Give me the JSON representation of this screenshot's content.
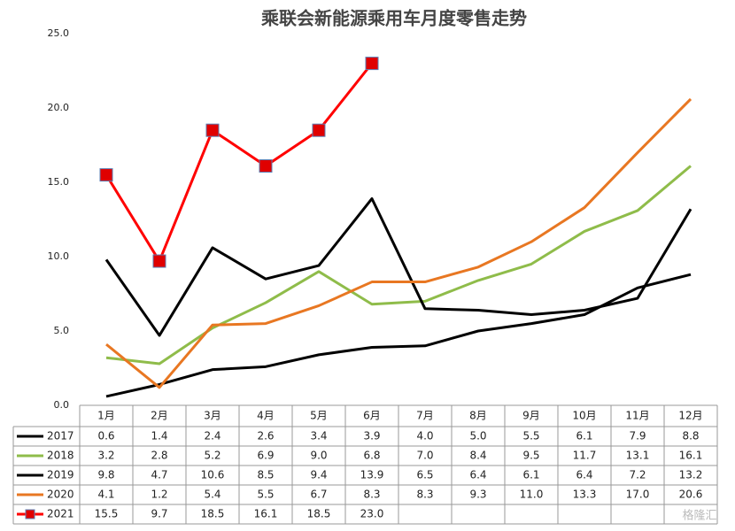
{
  "chart_data": {
    "type": "line",
    "title": "乘联会新能源乘用车月度零售走势",
    "categories": [
      "1月",
      "2月",
      "3月",
      "4月",
      "5月",
      "6月",
      "7月",
      "8月",
      "9月",
      "10月",
      "11月",
      "12月"
    ],
    "ylim": [
      0,
      25
    ],
    "yticks": [
      {
        "value": 0,
        "label": "0.0"
      },
      {
        "value": 5,
        "label": "5.0"
      },
      {
        "value": 10,
        "label": "10.0"
      },
      {
        "value": 15,
        "label": "15.0"
      },
      {
        "value": 20,
        "label": "20.0"
      },
      {
        "value": 25,
        "label": "25.0"
      }
    ],
    "series": [
      {
        "name": "2017",
        "color": "#000000",
        "values": [
          0.6,
          1.4,
          2.4,
          2.6,
          3.4,
          3.9,
          4.0,
          5.0,
          5.5,
          6.1,
          7.9,
          8.8
        ],
        "value_labels": [
          "0.6",
          "1.4",
          "2.4",
          "2.6",
          "3.4",
          "3.9",
          "4.0",
          "5.0",
          "5.5",
          "6.1",
          "7.9",
          "8.8"
        ]
      },
      {
        "name": "2018",
        "color": "#8fbc4a",
        "values": [
          3.2,
          2.8,
          5.2,
          6.9,
          9.0,
          6.8,
          7.0,
          8.4,
          9.5,
          11.7,
          13.1,
          16.1
        ],
        "value_labels": [
          "3.2",
          "2.8",
          "5.2",
          "6.9",
          "9.0",
          "6.8",
          "7.0",
          "8.4",
          "9.5",
          "11.7",
          "13.1",
          "16.1"
        ]
      },
      {
        "name": "2019",
        "color": "#000000",
        "values": [
          9.8,
          4.7,
          10.6,
          8.5,
          9.4,
          13.9,
          6.5,
          6.4,
          6.1,
          6.4,
          7.2,
          13.2
        ],
        "value_labels": [
          "9.8",
          "4.7",
          "10.6",
          "8.5",
          "9.4",
          "13.9",
          "6.5",
          "6.4",
          "6.1",
          "6.4",
          "7.2",
          "13.2"
        ]
      },
      {
        "name": "2020",
        "color": "#e87722",
        "values": [
          4.1,
          1.2,
          5.4,
          5.5,
          6.7,
          8.3,
          8.3,
          9.3,
          11.0,
          13.3,
          17.0,
          20.6
        ],
        "value_labels": [
          "4.1",
          "1.2",
          "5.4",
          "5.5",
          "6.7",
          "8.3",
          "8.3",
          "9.3",
          "11.0",
          "13.3",
          "17.0",
          "20.6"
        ]
      },
      {
        "name": "2021",
        "color": "#ff0000",
        "marker": "square",
        "values": [
          15.5,
          9.7,
          18.5,
          16.1,
          18.5,
          23.0,
          null,
          null,
          null,
          null,
          null,
          null
        ],
        "value_labels": [
          "15.5",
          "9.7",
          "18.5",
          "16.1",
          "18.5",
          "23.0",
          null,
          null,
          null,
          null,
          null,
          null
        ]
      }
    ],
    "watermark": "格隆汇"
  }
}
